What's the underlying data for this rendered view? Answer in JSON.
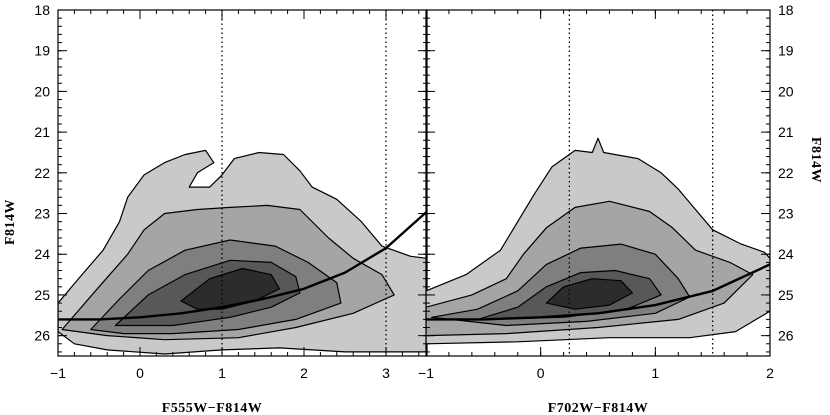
{
  "colors": {
    "level1": "#c9c9c9",
    "level2": "#a5a5a5",
    "level3": "#7f7f7f",
    "level4": "#585858",
    "level5": "#2c2c2c",
    "line": "#000000"
  },
  "chart_data": [
    {
      "type": "contour",
      "xlabel": "F555W−F814W",
      "ylabel": "F814W",
      "xlim": [
        -1,
        3.5
      ],
      "ylim": [
        26.5,
        18
      ],
      "xticks": [
        "−1",
        "0",
        "1",
        "2",
        "3"
      ],
      "xtick_values": [
        -1,
        0,
        1,
        2,
        3
      ],
      "yticks": [
        "18",
        "19",
        "20",
        "21",
        "22",
        "23",
        "24",
        "25",
        "26"
      ],
      "ytick_values": [
        18,
        19,
        20,
        21,
        22,
        23,
        24,
        25,
        26
      ],
      "vlines": [
        1,
        3
      ],
      "contours": [
        {
          "level": 1,
          "points": [
            [
              -1,
              25.9
            ],
            [
              -1,
              25.2
            ],
            [
              -0.75,
              24.6
            ],
            [
              -0.45,
              23.9
            ],
            [
              -0.25,
              23.2
            ],
            [
              -0.15,
              22.6
            ],
            [
              0.05,
              22.05
            ],
            [
              0.3,
              21.75
            ],
            [
              0.55,
              21.55
            ],
            [
              0.8,
              21.45
            ],
            [
              0.9,
              21.75
            ],
            [
              0.7,
              22.0
            ],
            [
              0.6,
              22.35
            ],
            [
              0.85,
              22.35
            ],
            [
              1.0,
              22.05
            ],
            [
              1.15,
              21.65
            ],
            [
              1.45,
              21.5
            ],
            [
              1.75,
              21.55
            ],
            [
              1.95,
              21.95
            ],
            [
              2.1,
              22.35
            ],
            [
              2.4,
              22.65
            ],
            [
              2.7,
              23.2
            ],
            [
              2.95,
              23.8
            ],
            [
              3.3,
              24.05
            ],
            [
              3.5,
              24.1
            ],
            [
              3.5,
              26.4
            ],
            [
              2.5,
              26.4
            ],
            [
              1.7,
              26.3
            ],
            [
              1.0,
              26.35
            ],
            [
              0.3,
              26.45
            ],
            [
              -0.4,
              26.35
            ],
            [
              -0.8,
              26.2
            ]
          ]
        },
        {
          "level": 2,
          "points": [
            [
              -0.95,
              25.85
            ],
            [
              -0.5,
              24.8
            ],
            [
              -0.15,
              24.0
            ],
            [
              0.05,
              23.4
            ],
            [
              0.3,
              23.0
            ],
            [
              0.7,
              22.9
            ],
            [
              1.1,
              22.85
            ],
            [
              1.55,
              22.8
            ],
            [
              1.95,
              22.9
            ],
            [
              2.3,
              23.6
            ],
            [
              2.6,
              24.1
            ],
            [
              2.95,
              24.5
            ],
            [
              3.1,
              25.0
            ],
            [
              2.6,
              25.45
            ],
            [
              1.9,
              25.8
            ],
            [
              1.2,
              26.05
            ],
            [
              0.3,
              26.1
            ],
            [
              -0.4,
              26.0
            ]
          ]
        },
        {
          "level": 3,
          "points": [
            [
              -0.6,
              25.85
            ],
            [
              -0.25,
              25.1
            ],
            [
              0.1,
              24.4
            ],
            [
              0.55,
              23.9
            ],
            [
              1.1,
              23.65
            ],
            [
              1.65,
              23.8
            ],
            [
              2.05,
              24.2
            ],
            [
              2.4,
              24.7
            ],
            [
              2.45,
              25.2
            ],
            [
              1.9,
              25.6
            ],
            [
              1.2,
              25.85
            ],
            [
              0.4,
              25.95
            ],
            [
              -0.2,
              25.95
            ]
          ]
        },
        {
          "level": 4,
          "points": [
            [
              -0.3,
              25.75
            ],
            [
              0.1,
              25.0
            ],
            [
              0.55,
              24.5
            ],
            [
              1.1,
              24.15
            ],
            [
              1.6,
              24.2
            ],
            [
              1.9,
              24.55
            ],
            [
              1.95,
              24.95
            ],
            [
              1.6,
              25.3
            ],
            [
              1.1,
              25.55
            ],
            [
              0.4,
              25.75
            ]
          ]
        },
        {
          "level": 5,
          "points": [
            [
              0.5,
              25.15
            ],
            [
              0.85,
              24.6
            ],
            [
              1.25,
              24.35
            ],
            [
              1.6,
              24.5
            ],
            [
              1.7,
              24.85
            ],
            [
              1.4,
              25.15
            ],
            [
              1.0,
              25.35
            ],
            [
              0.7,
              25.35
            ]
          ]
        }
      ],
      "curve": [
        [
          -1,
          25.6
        ],
        [
          -0.5,
          25.6
        ],
        [
          0,
          25.55
        ],
        [
          0.5,
          25.45
        ],
        [
          1,
          25.3
        ],
        [
          1.5,
          25.1
        ],
        [
          2,
          24.85
        ],
        [
          2.5,
          24.45
        ],
        [
          3,
          23.85
        ],
        [
          3.5,
          22.95
        ]
      ]
    },
    {
      "type": "contour",
      "xlabel": "F702W−F814W",
      "ylabel": "F814W",
      "xlim": [
        -1,
        2
      ],
      "ylim": [
        26.5,
        18
      ],
      "xticks": [
        "−1",
        "0",
        "1",
        "2"
      ],
      "xtick_values": [
        -1,
        0,
        1,
        2
      ],
      "yticks": [
        "18",
        "19",
        "20",
        "21",
        "22",
        "23",
        "24",
        "25",
        "26"
      ],
      "ytick_values": [
        18,
        19,
        20,
        21,
        22,
        23,
        24,
        25,
        26
      ],
      "vlines": [
        0.25,
        1.5
      ],
      "contours": [
        {
          "level": 1,
          "points": [
            [
              -1,
              24.9
            ],
            [
              -0.65,
              24.5
            ],
            [
              -0.35,
              23.9
            ],
            [
              -0.2,
              23.2
            ],
            [
              -0.05,
              22.5
            ],
            [
              0.1,
              21.85
            ],
            [
              0.3,
              21.45
            ],
            [
              0.45,
              21.5
            ],
            [
              0.5,
              21.15
            ],
            [
              0.55,
              21.5
            ],
            [
              0.85,
              21.65
            ],
            [
              1.05,
              22.0
            ],
            [
              1.2,
              22.4
            ],
            [
              1.35,
              22.9
            ],
            [
              1.5,
              23.4
            ],
            [
              1.75,
              23.75
            ],
            [
              1.95,
              23.95
            ],
            [
              2.0,
              24.1
            ],
            [
              2.0,
              25.4
            ],
            [
              1.7,
              25.9
            ],
            [
              1.3,
              26.05
            ],
            [
              0.6,
              26.05
            ],
            [
              -0.2,
              26.15
            ],
            [
              -1,
              26.2
            ]
          ]
        },
        {
          "level": 2,
          "points": [
            [
              -1,
              25.3
            ],
            [
              -0.6,
              25.0
            ],
            [
              -0.3,
              24.6
            ],
            [
              -0.15,
              24.0
            ],
            [
              0.05,
              23.35
            ],
            [
              0.3,
              22.85
            ],
            [
              0.6,
              22.7
            ],
            [
              0.95,
              22.95
            ],
            [
              1.15,
              23.35
            ],
            [
              1.35,
              23.9
            ],
            [
              1.65,
              24.2
            ],
            [
              1.85,
              24.5
            ],
            [
              1.6,
              25.2
            ],
            [
              1.2,
              25.6
            ],
            [
              0.5,
              25.8
            ],
            [
              -0.3,
              25.95
            ],
            [
              -1,
              26.0
            ]
          ]
        },
        {
          "level": 3,
          "points": [
            [
              -0.95,
              25.55
            ],
            [
              -0.55,
              25.35
            ],
            [
              -0.2,
              24.9
            ],
            [
              0.05,
              24.25
            ],
            [
              0.35,
              23.85
            ],
            [
              0.7,
              23.75
            ],
            [
              1.0,
              24.0
            ],
            [
              1.2,
              24.6
            ],
            [
              1.3,
              25.05
            ],
            [
              1.0,
              25.45
            ],
            [
              0.4,
              25.65
            ],
            [
              -0.3,
              25.75
            ]
          ]
        },
        {
          "level": 4,
          "points": [
            [
              -0.55,
              25.6
            ],
            [
              -0.2,
              25.3
            ],
            [
              0.05,
              24.8
            ],
            [
              0.35,
              24.45
            ],
            [
              0.65,
              24.4
            ],
            [
              0.95,
              24.6
            ],
            [
              1.05,
              25.0
            ],
            [
              0.75,
              25.35
            ],
            [
              0.2,
              25.55
            ]
          ]
        },
        {
          "level": 5,
          "points": [
            [
              0.05,
              25.2
            ],
            [
              0.2,
              24.8
            ],
            [
              0.45,
              24.6
            ],
            [
              0.7,
              24.65
            ],
            [
              0.8,
              24.95
            ],
            [
              0.6,
              25.25
            ],
            [
              0.3,
              25.35
            ]
          ]
        }
      ],
      "curve": [
        [
          -1,
          25.6
        ],
        [
          -0.5,
          25.6
        ],
        [
          0,
          25.55
        ],
        [
          0.5,
          25.45
        ],
        [
          1,
          25.25
        ],
        [
          1.5,
          24.9
        ],
        [
          2,
          24.25
        ]
      ]
    }
  ]
}
